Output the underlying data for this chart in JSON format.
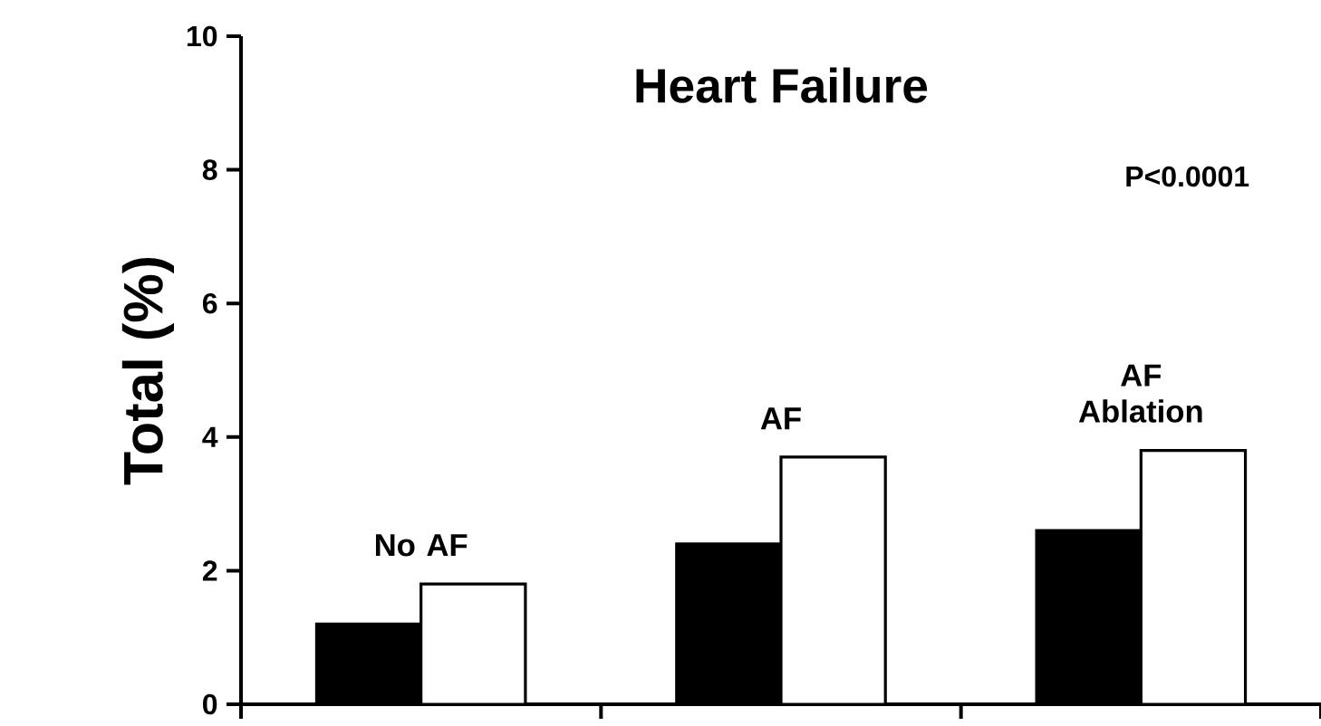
{
  "chart_data": {
    "type": "bar",
    "title": "Heart Failure",
    "ylabel": "Total (%)",
    "categories": [
      "No AF",
      "AF",
      "AF Ablation"
    ],
    "series": [
      {
        "color": "#000000",
        "values": [
          1.2,
          2.4,
          2.6
        ]
      },
      {
        "color": "#ffffff",
        "values": [
          1.8,
          3.7,
          3.8
        ]
      }
    ],
    "ylim": [
      0,
      10
    ],
    "yticks": [
      0,
      2,
      4,
      6,
      8,
      10
    ],
    "annotations": [
      "P<0.0001"
    ],
    "grid": false
  }
}
